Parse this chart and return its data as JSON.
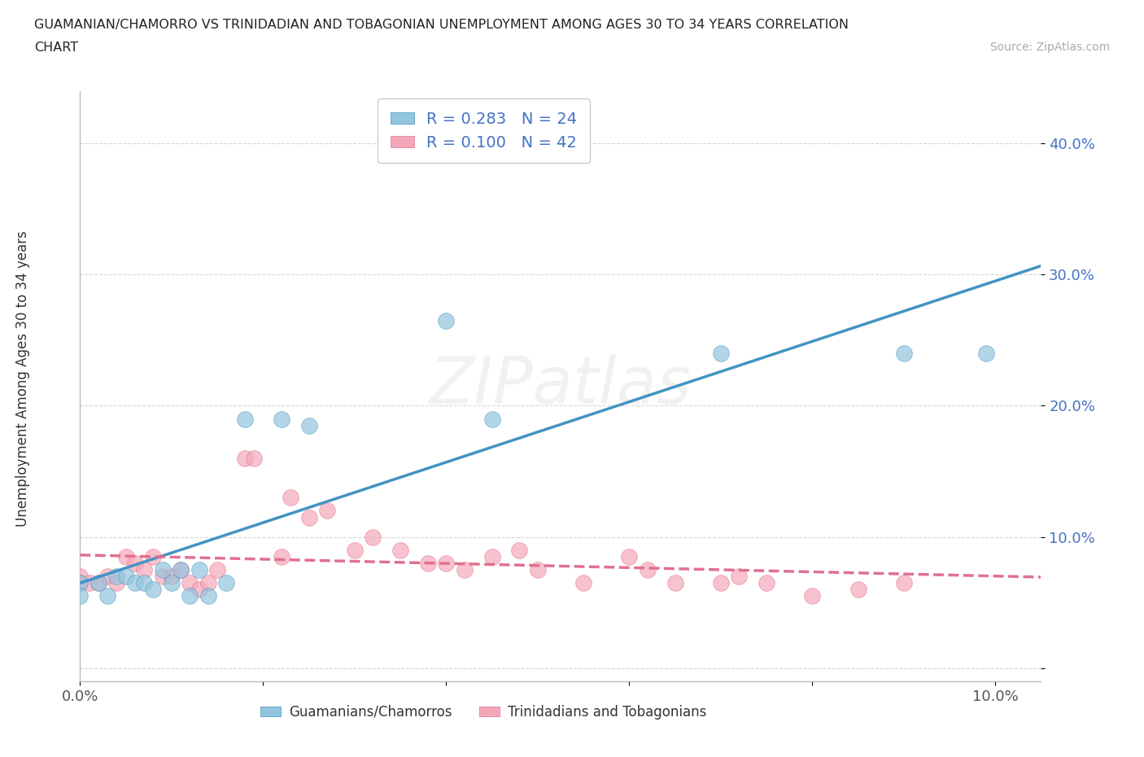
{
  "title_line1": "GUAMANIAN/CHAMORRO VS TRINIDADIAN AND TOBAGONIAN UNEMPLOYMENT AMONG AGES 30 TO 34 YEARS CORRELATION",
  "title_line2": "CHART",
  "source_text": "Source: ZipAtlas.com",
  "ylabel": "Unemployment Among Ages 30 to 34 years",
  "xlim": [
    0.0,
    0.105
  ],
  "ylim": [
    -0.01,
    0.44
  ],
  "xticks": [
    0.0,
    0.02,
    0.04,
    0.06,
    0.08,
    0.1
  ],
  "yticks": [
    0.0,
    0.1,
    0.2,
    0.3,
    0.4
  ],
  "xticklabels": [
    "0.0%",
    "",
    "",
    "",
    "",
    "10.0%"
  ],
  "yticklabels": [
    "",
    "10.0%",
    "20.0%",
    "30.0%",
    "40.0%"
  ],
  "blue_R": 0.283,
  "blue_N": 24,
  "pink_R": 0.1,
  "pink_N": 42,
  "blue_color": "#92c5de",
  "pink_color": "#f4a7b9",
  "blue_line_color": "#4393c3",
  "pink_line_color": "#e07090",
  "watermark_text": "ZIPatlas",
  "blue_scatter_x": [
    0.0,
    0.0,
    0.002,
    0.003,
    0.004,
    0.005,
    0.006,
    0.007,
    0.008,
    0.009,
    0.01,
    0.011,
    0.012,
    0.013,
    0.014,
    0.016,
    0.018,
    0.022,
    0.025,
    0.04,
    0.045,
    0.07,
    0.09,
    0.099
  ],
  "blue_scatter_y": [
    0.065,
    0.055,
    0.065,
    0.055,
    0.07,
    0.07,
    0.065,
    0.065,
    0.06,
    0.075,
    0.065,
    0.075,
    0.055,
    0.075,
    0.055,
    0.065,
    0.19,
    0.19,
    0.185,
    0.265,
    0.19,
    0.24,
    0.24,
    0.24
  ],
  "pink_scatter_x": [
    0.0,
    0.0,
    0.001,
    0.002,
    0.003,
    0.004,
    0.005,
    0.006,
    0.007,
    0.008,
    0.009,
    0.01,
    0.011,
    0.012,
    0.013,
    0.014,
    0.015,
    0.018,
    0.019,
    0.022,
    0.023,
    0.025,
    0.027,
    0.03,
    0.032,
    0.035,
    0.038,
    0.04,
    0.042,
    0.045,
    0.048,
    0.05,
    0.055,
    0.06,
    0.062,
    0.065,
    0.07,
    0.072,
    0.075,
    0.08,
    0.085,
    0.09
  ],
  "pink_scatter_y": [
    0.07,
    0.065,
    0.065,
    0.065,
    0.07,
    0.065,
    0.085,
    0.08,
    0.075,
    0.085,
    0.07,
    0.07,
    0.075,
    0.065,
    0.06,
    0.065,
    0.075,
    0.16,
    0.16,
    0.085,
    0.13,
    0.115,
    0.12,
    0.09,
    0.1,
    0.09,
    0.08,
    0.08,
    0.075,
    0.085,
    0.09,
    0.075,
    0.065,
    0.085,
    0.075,
    0.065,
    0.065,
    0.07,
    0.065,
    0.055,
    0.06,
    0.065
  ],
  "background_color": "#ffffff",
  "grid_color": "#cccccc",
  "label_color": "#4472c4",
  "tick_color": "#555555"
}
